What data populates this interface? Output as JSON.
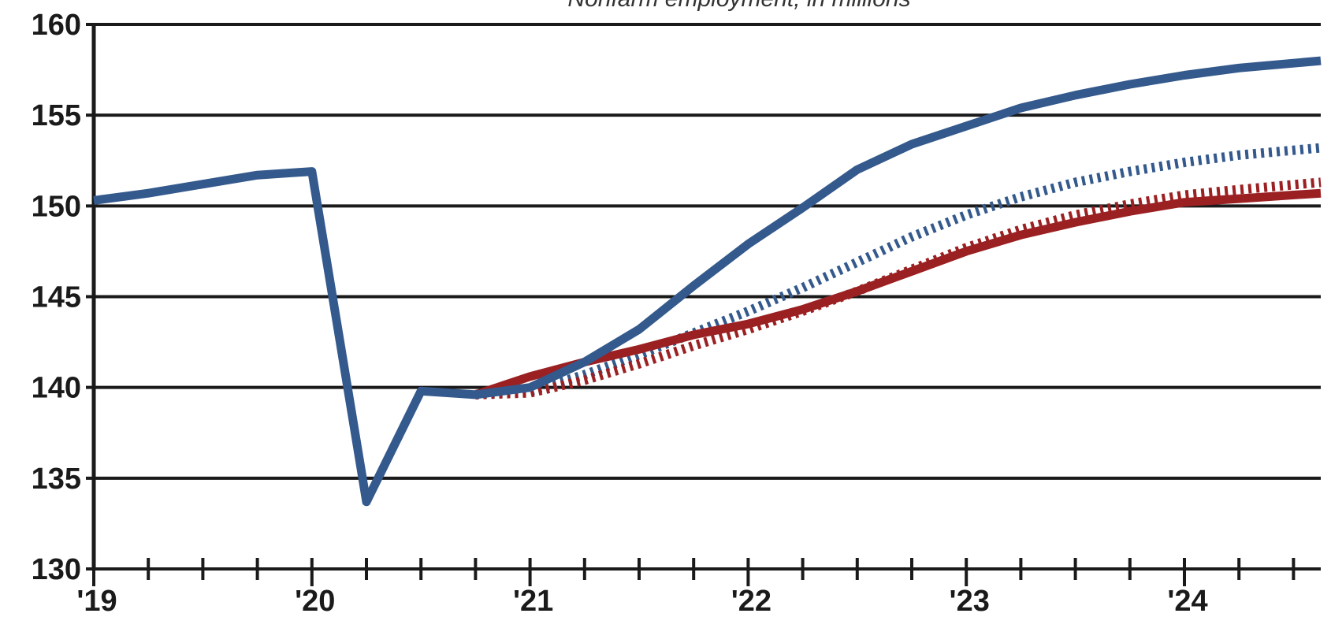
{
  "chart_data": {
    "type": "line",
    "subtitle": "Nonfarm employment, in millions",
    "x_unit": "quarter",
    "xlim": [
      2019.0,
      2024.625
    ],
    "ylim": [
      130,
      160
    ],
    "y_ticks": [
      130,
      135,
      140,
      145,
      150,
      155,
      160
    ],
    "y_tick_labels": [
      "130",
      "135",
      "140",
      "145",
      "150",
      "155",
      "160"
    ],
    "x_tick_labels": [
      {
        "x": 2019,
        "label": "'19"
      },
      {
        "x": 2020,
        "label": "'20"
      },
      {
        "x": 2021,
        "label": "'21"
      },
      {
        "x": 2022,
        "label": "'22"
      },
      {
        "x": 2023,
        "label": "'23"
      },
      {
        "x": 2024,
        "label": "'24"
      }
    ],
    "grid": true,
    "series": [
      {
        "style": "solid",
        "color": "#34598c",
        "points": [
          [
            2019.0,
            150.3
          ],
          [
            2019.25,
            150.7
          ],
          [
            2019.5,
            151.2
          ],
          [
            2019.75,
            151.7
          ],
          [
            2020.0,
            151.9
          ],
          [
            2020.25,
            133.7
          ],
          [
            2020.5,
            139.8
          ],
          [
            2020.75,
            139.6
          ],
          [
            2021.0,
            140.0
          ],
          [
            2021.25,
            141.4
          ],
          [
            2021.5,
            143.2
          ],
          [
            2021.75,
            145.6
          ],
          [
            2022.0,
            147.9
          ],
          [
            2022.25,
            149.9
          ],
          [
            2022.5,
            152.0
          ],
          [
            2022.75,
            153.4
          ],
          [
            2023.0,
            154.4
          ],
          [
            2023.25,
            155.4
          ],
          [
            2023.5,
            156.1
          ],
          [
            2023.75,
            156.7
          ],
          [
            2024.0,
            157.2
          ],
          [
            2024.25,
            157.6
          ],
          [
            2024.625,
            158.0
          ]
        ]
      },
      {
        "style": "dotted",
        "color": "#34598c",
        "points": [
          [
            2020.75,
            139.6
          ],
          [
            2021.0,
            139.8
          ],
          [
            2021.25,
            140.7
          ],
          [
            2021.5,
            141.8
          ],
          [
            2021.75,
            143.0
          ],
          [
            2022.0,
            144.2
          ],
          [
            2022.25,
            145.5
          ],
          [
            2022.5,
            146.9
          ],
          [
            2022.75,
            148.3
          ],
          [
            2023.0,
            149.5
          ],
          [
            2023.25,
            150.5
          ],
          [
            2023.5,
            151.3
          ],
          [
            2023.75,
            151.9
          ],
          [
            2024.0,
            152.4
          ],
          [
            2024.25,
            152.8
          ],
          [
            2024.625,
            153.2
          ]
        ]
      },
      {
        "style": "solid",
        "color": "#9b2022",
        "points": [
          [
            2020.75,
            139.6
          ],
          [
            2021.0,
            140.6
          ],
          [
            2021.25,
            141.4
          ],
          [
            2021.5,
            142.1
          ],
          [
            2021.75,
            142.9
          ],
          [
            2022.0,
            143.5
          ],
          [
            2022.25,
            144.3
          ],
          [
            2022.5,
            145.3
          ],
          [
            2022.75,
            146.4
          ],
          [
            2023.0,
            147.5
          ],
          [
            2023.25,
            148.4
          ],
          [
            2023.5,
            149.1
          ],
          [
            2023.75,
            149.7
          ],
          [
            2024.0,
            150.2
          ],
          [
            2024.25,
            150.4
          ],
          [
            2024.625,
            150.7
          ]
        ]
      },
      {
        "style": "dotted",
        "color": "#9b2022",
        "points": [
          [
            2020.75,
            139.6
          ],
          [
            2021.0,
            139.7
          ],
          [
            2021.25,
            140.4
          ],
          [
            2021.5,
            141.3
          ],
          [
            2021.75,
            142.3
          ],
          [
            2022.0,
            143.2
          ],
          [
            2022.25,
            144.2
          ],
          [
            2022.5,
            145.3
          ],
          [
            2022.75,
            146.5
          ],
          [
            2023.0,
            147.7
          ],
          [
            2023.25,
            148.7
          ],
          [
            2023.5,
            149.5
          ],
          [
            2023.75,
            150.1
          ],
          [
            2024.0,
            150.6
          ],
          [
            2024.25,
            150.9
          ],
          [
            2024.625,
            151.3
          ]
        ]
      }
    ]
  }
}
